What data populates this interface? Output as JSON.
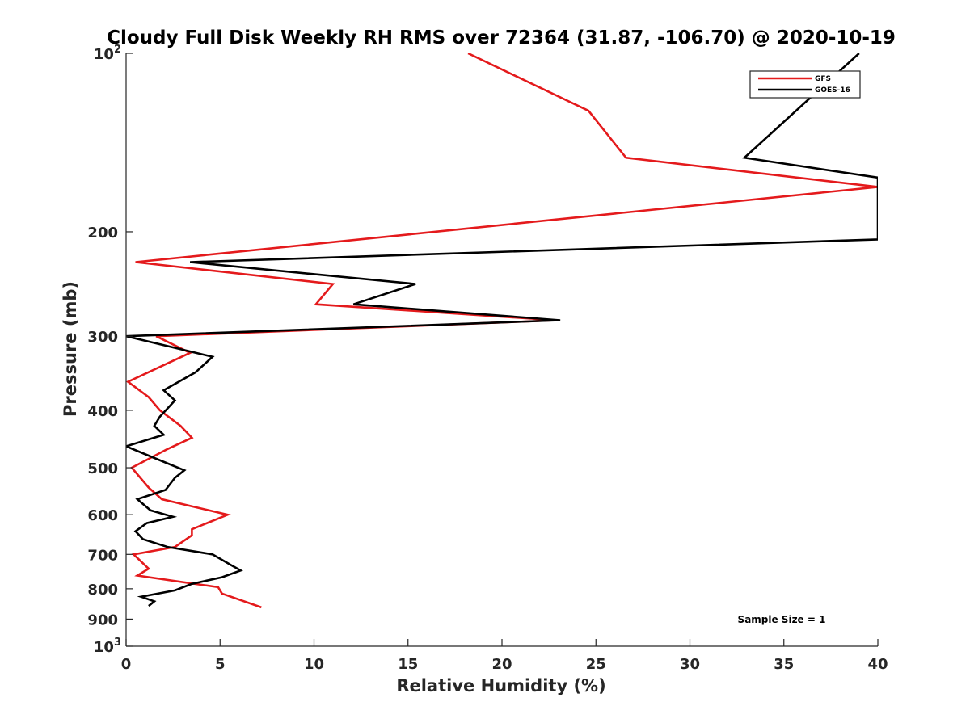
{
  "chart_data": {
    "type": "line",
    "title": "Cloudy Full Disk Weekly RH RMS over 72364 (31.87, -106.70) @ 2020-10-19",
    "xlabel": "Relative Humidity (%)",
    "ylabel": "Pressure (mb)",
    "xlim": [
      0,
      40
    ],
    "ylim": [
      100,
      1000
    ],
    "y_scale": "log",
    "y_reversed": true,
    "grid": false,
    "x_ticks": [
      0,
      5,
      10,
      15,
      20,
      25,
      30,
      35,
      40
    ],
    "x_tick_labels": [
      "0",
      "5",
      "10",
      "15",
      "20",
      "25",
      "30",
      "35",
      "40"
    ],
    "y_ticks": [
      100,
      200,
      300,
      400,
      500,
      600,
      700,
      800,
      900,
      1000
    ],
    "y_tick_labels": [
      {
        "base": "10",
        "exp": "2"
      },
      {
        "text": "200"
      },
      {
        "text": "300"
      },
      {
        "text": "400"
      },
      {
        "text": "500"
      },
      {
        "text": "600"
      },
      {
        "text": "700"
      },
      {
        "text": "800"
      },
      {
        "text": "900"
      },
      {
        "base": "10",
        "exp": "3"
      }
    ],
    "legend": {
      "position": "top-right"
    },
    "annotation": "Sample Size = 1",
    "series": [
      {
        "name": "GFS",
        "color": "#e41a1c",
        "points": [
          [
            18.2,
            100
          ],
          [
            24.6,
            125
          ],
          [
            26.6,
            150
          ],
          [
            40.0,
            168
          ],
          [
            0.5,
            225
          ],
          [
            11.0,
            245
          ],
          [
            10.1,
            265
          ],
          [
            22.9,
            282
          ],
          [
            1.6,
            300
          ],
          [
            3.4,
            320
          ],
          [
            0.1,
            358
          ],
          [
            1.2,
            380
          ],
          [
            1.8,
            400
          ],
          [
            2.9,
            425
          ],
          [
            3.5,
            445
          ],
          [
            2.2,
            465
          ],
          [
            0.3,
            500
          ],
          [
            1.2,
            540
          ],
          [
            1.9,
            565
          ],
          [
            5.4,
            600
          ],
          [
            3.5,
            635
          ],
          [
            3.5,
            650
          ],
          [
            2.6,
            680
          ],
          [
            0.4,
            700
          ],
          [
            1.2,
            740
          ],
          [
            0.6,
            760
          ],
          [
            4.9,
            795
          ],
          [
            5.1,
            815
          ],
          [
            7.2,
            860
          ]
        ]
      },
      {
        "name": "GOES-16",
        "color": "#000000",
        "points": [
          [
            39.0,
            100
          ],
          [
            32.9,
            150
          ],
          [
            40.0,
            162
          ],
          [
            40.0,
            206
          ],
          [
            3.4,
            225
          ],
          [
            15.4,
            245
          ],
          [
            12.1,
            265
          ],
          [
            23.1,
            282
          ],
          [
            0.0,
            300
          ],
          [
            4.6,
            325
          ],
          [
            3.7,
            345
          ],
          [
            2.0,
            370
          ],
          [
            2.6,
            385
          ],
          [
            1.8,
            410
          ],
          [
            1.5,
            425
          ],
          [
            2.0,
            440
          ],
          [
            0.0,
            460
          ],
          [
            1.4,
            480
          ],
          [
            3.1,
            505
          ],
          [
            2.6,
            520
          ],
          [
            2.1,
            545
          ],
          [
            0.6,
            565
          ],
          [
            1.3,
            590
          ],
          [
            2.5,
            605
          ],
          [
            1.1,
            620
          ],
          [
            0.5,
            640
          ],
          [
            0.9,
            660
          ],
          [
            2.2,
            680
          ],
          [
            4.6,
            700
          ],
          [
            5.6,
            730
          ],
          [
            6.1,
            745
          ],
          [
            5.1,
            765
          ],
          [
            3.5,
            785
          ],
          [
            2.6,
            805
          ],
          [
            0.8,
            825
          ],
          [
            1.5,
            840
          ],
          [
            1.2,
            855
          ]
        ]
      }
    ]
  }
}
